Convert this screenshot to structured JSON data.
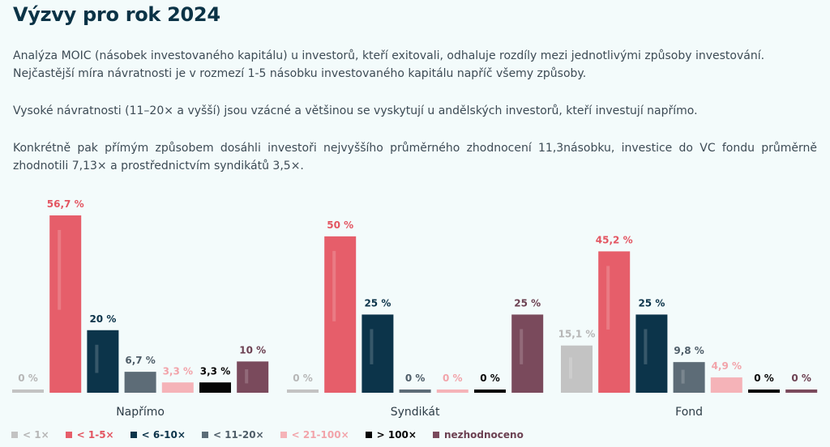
{
  "header": {
    "title": "Výzvy pro rok 2024",
    "paragraphs": [
      "Analýza MOIC (násobek investovaného kapitálu) u investorů, kteří exitovali, odhaluje rozdíly mezi jednotlivými způsoby investování. Nejčastější míra návratnosti je v rozmezí 1-5 násobku investovaného kapitálu napříč všemy způsoby.",
      "Vysoké návratnosti (11–20× a vyšší) jsou vzácné a většinou se vyskytují u andělských investorů, kteří investují napřímo.",
      "Konkrétně pak přímým způsobem dosáhli investoři nejvyššího průměrného zhodnocení 11,3násobku, investice do VC fondu průměrně zhodnotili 7,13× a prostřednictvím syndikátů 3,5×."
    ]
  },
  "chart_data": {
    "type": "bar",
    "title": "",
    "xlabel": "",
    "ylabel": "",
    "ylim": [
      0,
      56.7
    ],
    "value_suffix": " %",
    "categories": [
      "Napřímo",
      "Syndikát",
      "Fond"
    ],
    "series": [
      {
        "name": "< 1×",
        "color": "#c3c3c3",
        "label_color": "#b6b6b6",
        "values": [
          0,
          0,
          15.1
        ],
        "labels": [
          "0 %",
          "0 %",
          "15,1 %"
        ]
      },
      {
        "name": "< 1-5×",
        "color": "#e65e6a",
        "label_color": "#e35561",
        "values": [
          56.7,
          50,
          45.2
        ],
        "labels": [
          "56,7 %",
          "50 %",
          "45,2 %"
        ]
      },
      {
        "name": "< 6-10×",
        "color": "#0c344a",
        "label_color": "#0c344a",
        "values": [
          20,
          25,
          25
        ],
        "labels": [
          "20 %",
          "25 %",
          "25 %"
        ]
      },
      {
        "name": "< 11-20×",
        "color": "#5d6c77",
        "label_color": "#4f5e69",
        "values": [
          6.7,
          0,
          9.8
        ],
        "labels": [
          "6,7 %",
          "0 %",
          "9,8 %"
        ]
      },
      {
        "name": "< 21-100×",
        "color": "#f5b3b8",
        "label_color": "#f2a4aa",
        "values": [
          3.3,
          0,
          4.9
        ],
        "labels": [
          "3,3 %",
          "0 %",
          "4,9 %"
        ]
      },
      {
        "name": "> 100×",
        "color": "#050505",
        "label_color": "#050505",
        "values": [
          3.3,
          0,
          0
        ],
        "labels": [
          "3,3 %",
          "0 %",
          "0 %"
        ]
      },
      {
        "name": "nezhodnoceno",
        "color": "#7a4a5c",
        "label_color": "#6c4152",
        "values": [
          10,
          25,
          0
        ],
        "labels": [
          "10 %",
          "25 %",
          "0 %"
        ]
      }
    ],
    "grid": false,
    "legend_position": "bottom-left"
  }
}
